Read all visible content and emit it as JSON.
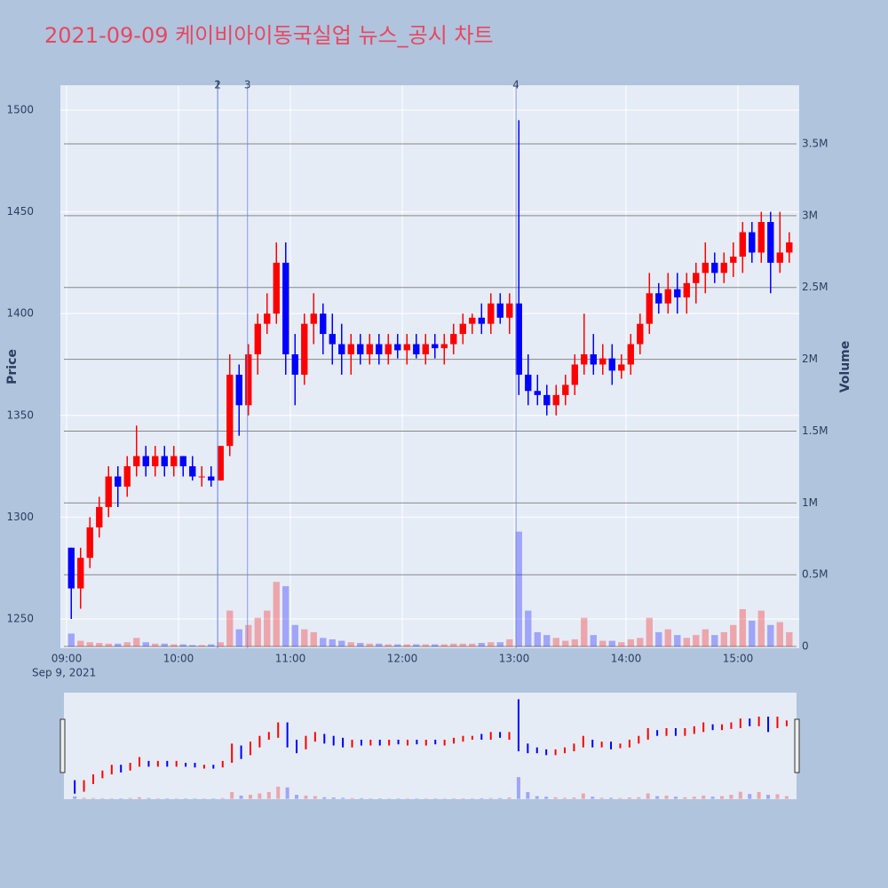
{
  "chart_data": {
    "type": "candlestick",
    "title": "2021-09-09 케이비아이동국실업 뉴스_공시 차트",
    "y_title": "Price",
    "y2_title": "Volume",
    "x_date_label": "Sep 9, 2021",
    "increasing_color": "#ff0000",
    "decreasing_color": "#0000ff",
    "x": [
      "2021-09-09 09:00",
      "2021-09-09 09:05",
      "2021-09-09 09:10",
      "2021-09-09 09:15",
      "2021-09-09 09:20",
      "2021-09-09 09:25",
      "2021-09-09 09:30",
      "2021-09-09 09:35",
      "2021-09-09 09:40",
      "2021-09-09 09:45",
      "2021-09-09 09:50",
      "2021-09-09 09:55",
      "2021-09-09 10:00",
      "2021-09-09 10:05",
      "2021-09-09 10:10",
      "2021-09-09 10:15",
      "2021-09-09 10:20",
      "2021-09-09 10:25",
      "2021-09-09 10:30",
      "2021-09-09 10:35",
      "2021-09-09 10:40",
      "2021-09-09 10:45",
      "2021-09-09 10:50",
      "2021-09-09 10:55",
      "2021-09-09 11:00",
      "2021-09-09 11:05",
      "2021-09-09 11:10",
      "2021-09-09 11:15",
      "2021-09-09 11:20",
      "2021-09-09 11:25",
      "2021-09-09 11:30",
      "2021-09-09 11:35",
      "2021-09-09 11:40",
      "2021-09-09 11:45",
      "2021-09-09 11:50",
      "2021-09-09 11:55",
      "2021-09-09 12:00",
      "2021-09-09 12:05",
      "2021-09-09 12:10",
      "2021-09-09 12:15",
      "2021-09-09 12:20",
      "2021-09-09 12:25",
      "2021-09-09 12:30",
      "2021-09-09 12:35",
      "2021-09-09 12:40",
      "2021-09-09 12:45",
      "2021-09-09 12:50",
      "2021-09-09 12:55",
      "2021-09-09 13:00",
      "2021-09-09 13:05",
      "2021-09-09 13:10",
      "2021-09-09 13:15",
      "2021-09-09 13:20",
      "2021-09-09 13:25",
      "2021-09-09 13:30",
      "2021-09-09 13:35",
      "2021-09-09 13:40",
      "2021-09-09 13:45",
      "2021-09-09 13:50",
      "2021-09-09 13:55",
      "2021-09-09 14:00",
      "2021-09-09 14:05",
      "2021-09-09 14:10",
      "2021-09-09 14:15",
      "2021-09-09 14:20",
      "2021-09-09 14:25",
      "2021-09-09 14:30",
      "2021-09-09 14:35",
      "2021-09-09 14:40",
      "2021-09-09 14:45",
      "2021-09-09 14:50",
      "2021-09-09 14:55",
      "2021-09-09 15:00",
      "2021-09-09 15:05",
      "2021-09-09 15:10",
      "2021-09-09 15:15",
      "2021-09-09 15:20",
      "2021-09-09 15:25"
    ],
    "open": [
      1285,
      1265,
      1280,
      1295,
      1305,
      1320,
      1315,
      1325,
      1330,
      1325,
      1330,
      1325,
      1330,
      1325,
      1320,
      1320,
      1318,
      1335,
      1370,
      1355,
      1380,
      1395,
      1400,
      1425,
      1380,
      1370,
      1395,
      1400,
      1390,
      1385,
      1380,
      1385,
      1380,
      1385,
      1380,
      1385,
      1382,
      1385,
      1380,
      1385,
      1383,
      1385,
      1390,
      1395,
      1398,
      1395,
      1405,
      1398,
      1405,
      1370,
      1362,
      1360,
      1355,
      1360,
      1365,
      1375,
      1380,
      1375,
      1378,
      1372,
      1375,
      1385,
      1395,
      1410,
      1405,
      1412,
      1408,
      1415,
      1420,
      1425,
      1420,
      1425,
      1428,
      1440,
      1430,
      1445,
      1425,
      1430
    ],
    "high": [
      1285,
      1285,
      1300,
      1310,
      1325,
      1325,
      1330,
      1345,
      1335,
      1335,
      1335,
      1335,
      1330,
      1330,
      1325,
      1325,
      1335,
      1380,
      1375,
      1385,
      1400,
      1410,
      1435,
      1435,
      1390,
      1400,
      1410,
      1405,
      1400,
      1395,
      1390,
      1390,
      1390,
      1390,
      1390,
      1390,
      1390,
      1390,
      1390,
      1390,
      1390,
      1395,
      1400,
      1400,
      1405,
      1410,
      1410,
      1410,
      1495,
      1380,
      1370,
      1365,
      1365,
      1370,
      1380,
      1400,
      1390,
      1385,
      1385,
      1380,
      1390,
      1400,
      1420,
      1415,
      1420,
      1420,
      1420,
      1425,
      1435,
      1430,
      1430,
      1435,
      1445,
      1445,
      1450,
      1450,
      1450,
      1440
    ],
    "low": [
      1250,
      1255,
      1275,
      1290,
      1300,
      1305,
      1310,
      1320,
      1320,
      1320,
      1320,
      1320,
      1320,
      1318,
      1315,
      1315,
      1318,
      1330,
      1340,
      1350,
      1370,
      1390,
      1395,
      1370,
      1355,
      1365,
      1385,
      1380,
      1375,
      1370,
      1370,
      1375,
      1375,
      1375,
      1375,
      1378,
      1375,
      1378,
      1375,
      1378,
      1375,
      1380,
      1385,
      1390,
      1390,
      1390,
      1395,
      1390,
      1360,
      1355,
      1355,
      1350,
      1350,
      1355,
      1360,
      1370,
      1370,
      1370,
      1365,
      1368,
      1370,
      1380,
      1390,
      1400,
      1400,
      1400,
      1400,
      1405,
      1410,
      1415,
      1415,
      1418,
      1420,
      1425,
      1425,
      1410,
      1420,
      1425
    ],
    "close": [
      1265,
      1280,
      1295,
      1305,
      1320,
      1315,
      1325,
      1330,
      1325,
      1330,
      1325,
      1330,
      1325,
      1320,
      1320,
      1318,
      1335,
      1370,
      1355,
      1380,
      1395,
      1400,
      1425,
      1380,
      1370,
      1395,
      1400,
      1390,
      1385,
      1380,
      1385,
      1380,
      1385,
      1380,
      1385,
      1382,
      1385,
      1380,
      1385,
      1383,
      1385,
      1390,
      1395,
      1398,
      1395,
      1405,
      1398,
      1405,
      1370,
      1362,
      1360,
      1355,
      1360,
      1365,
      1375,
      1380,
      1375,
      1378,
      1372,
      1375,
      1385,
      1395,
      1410,
      1405,
      1412,
      1408,
      1415,
      1420,
      1425,
      1420,
      1425,
      1428,
      1440,
      1430,
      1445,
      1425,
      1430,
      1435
    ],
    "volume": [
      90000,
      40000,
      30000,
      25000,
      20000,
      20000,
      30000,
      60000,
      30000,
      20000,
      20000,
      15000,
      15000,
      10000,
      10000,
      15000,
      30000,
      250000,
      120000,
      150000,
      200000,
      250000,
      450000,
      420000,
      150000,
      120000,
      100000,
      60000,
      50000,
      40000,
      30000,
      25000,
      20000,
      20000,
      15000,
      15000,
      15000,
      15000,
      15000,
      15000,
      15000,
      20000,
      20000,
      20000,
      25000,
      30000,
      30000,
      50000,
      800000,
      250000,
      100000,
      80000,
      60000,
      40000,
      50000,
      200000,
      80000,
      40000,
      40000,
      30000,
      50000,
      60000,
      200000,
      100000,
      120000,
      80000,
      60000,
      80000,
      120000,
      80000,
      100000,
      150000,
      260000,
      180000,
      250000,
      150000,
      170000,
      100000
    ],
    "news": [
      {
        "x": "2021-09-09 10:21",
        "label": "1"
      },
      {
        "x": "2021-09-09 10:21",
        "label": "2"
      },
      {
        "x": "2021-09-09 10:37",
        "label": "3"
      },
      {
        "x": "2021-09-09 13:01",
        "label": "4"
      }
    ],
    "xlim": [
      "2021-09-09 08:56:40",
      "2021-09-09 15:32:50"
    ],
    "xticks": [
      {
        "value": "2021-09-09 09:00",
        "label": "09:00"
      },
      {
        "value": "2021-09-09 10:00",
        "label": "10:00"
      },
      {
        "value": "2021-09-09 11:00",
        "label": "11:00"
      },
      {
        "value": "2021-09-09 12:00",
        "label": "12:00"
      },
      {
        "value": "2021-09-09 13:00",
        "label": "13:00"
      },
      {
        "value": "2021-09-09 14:00",
        "label": "14:00"
      },
      {
        "value": "2021-09-09 15:00",
        "label": "15:00"
      }
    ],
    "ylim": [
      1235.6,
      1512.2
    ],
    "yticks": [
      1250,
      1300,
      1350,
      1400,
      1450,
      1500
    ],
    "y2lim": [
      -12000,
      3908000
    ],
    "y2ticks": [
      0,
      {
        "value": 500000,
        "label": "0.5M"
      },
      {
        "value": 1000000,
        "label": "1M"
      },
      {
        "value": 1500000,
        "label": "1.5M"
      },
      {
        "value": 2000000,
        "label": "2M"
      },
      {
        "value": 2500000,
        "label": "2.5M"
      },
      {
        "value": 3000000,
        "label": "3M"
      },
      {
        "value": 3500000,
        "label": "3.5M"
      }
    ]
  }
}
